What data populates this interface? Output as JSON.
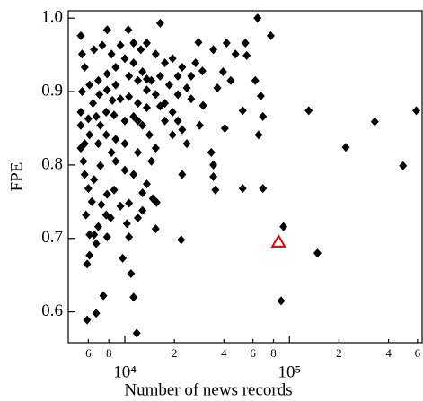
{
  "chart_data": {
    "type": "scatter",
    "xlabel": "Number of news records",
    "ylabel": "FPE",
    "xscale": "log",
    "xlim": [
      4530,
      640000
    ],
    "ylim": [
      0.558,
      1.01
    ],
    "xticks": [
      {
        "value": 6000,
        "label": "6"
      },
      {
        "value": 8000,
        "label": "8"
      },
      {
        "value": 10000,
        "label": "10⁴"
      },
      {
        "value": 20000,
        "label": "2"
      },
      {
        "value": 40000,
        "label": "4"
      },
      {
        "value": 60000,
        "label": "6"
      },
      {
        "value": 80000,
        "label": "8"
      },
      {
        "value": 100000,
        "label": "10⁵"
      },
      {
        "value": 200000,
        "label": "2"
      },
      {
        "value": 400000,
        "label": "4"
      },
      {
        "value": 600000,
        "label": "6"
      }
    ],
    "yticks": [
      0.6,
      0.7,
      0.8,
      0.9,
      {
        "value": 1,
        "label": "1.0"
      }
    ],
    "series": [
      {
        "color": "#000000",
        "marker": "diamond",
        "x": [
          64000,
          77000,
          54000,
          16400,
          7810,
          10500,
          41500,
          55000,
          62000,
          69000,
          52000,
          67000,
          65000,
          131000,
          330000,
          590000,
          220000,
          490000,
          52000,
          69000,
          92000,
          148000,
          89000,
          40500,
          33500,
          34500,
          34500,
          35500,
          22300,
          22000,
          29900,
          29600,
          34500,
          28000,
          44000,
          39500,
          5900,
          6700,
          7400,
          11300,
          11800,
          10900,
          9700,
          5900,
          6100,
          6100,
          6500,
          6900,
          7700,
          8200,
          5800,
          6300,
          7200,
          7800,
          9400,
          10600,
          12000,
          14800,
          15600,
          15400,
          12800,
          13600,
          11300,
          10000,
          8800,
          6500,
          6000,
          7100,
          8300,
          5600,
          5400,
          5700,
          6100,
          6900,
          7700,
          8800,
          10000,
          12000,
          14500,
          15400,
          14100,
          12800,
          11300,
          10000,
          8600,
          7700,
          6700,
          6000,
          5400,
          5400,
          6400,
          7000,
          7800,
          8400,
          9400,
          10600,
          12000,
          13600,
          16400,
          19500,
          21000,
          22300,
          19500,
          23800,
          21000,
          23800,
          18600,
          16400,
          14500,
          12800,
          11300,
          10000,
          8800,
          7800,
          6900,
          6100,
          5500,
          5700,
          5500,
          5400,
          6500,
          7300,
          8300,
          9400,
          11300,
          12500,
          13600,
          15400,
          17500,
          19500,
          22300,
          25300,
          26900,
          25300,
          28500,
          17500,
          10600,
          12000,
          13600,
          15400,
          8800,
          7100,
          5700,
          7800,
          6700,
          10300,
          8600,
          10600,
          12800,
          13600,
          17500,
          36500,
          47000,
          21000,
          12000
        ],
        "values": [
          1.0,
          0.976,
          0.966,
          0.993,
          0.984,
          0.984,
          0.966,
          0.949,
          0.915,
          0.866,
          0.874,
          0.894,
          0.841,
          0.874,
          0.859,
          0.874,
          0.824,
          0.799,
          0.768,
          0.768,
          0.716,
          0.68,
          0.615,
          0.85,
          0.817,
          0.8,
          0.784,
          0.766,
          0.787,
          0.698,
          0.881,
          0.928,
          0.957,
          0.967,
          0.915,
          0.927,
          0.589,
          0.598,
          0.622,
          0.62,
          0.571,
          0.652,
          0.673,
          0.665,
          0.677,
          0.705,
          0.705,
          0.716,
          0.732,
          0.728,
          0.732,
          0.75,
          0.746,
          0.76,
          0.744,
          0.748,
          0.728,
          0.754,
          0.749,
          0.713,
          0.762,
          0.774,
          0.787,
          0.793,
          0.805,
          0.78,
          0.768,
          0.799,
          0.817,
          0.805,
          0.823,
          0.829,
          0.841,
          0.829,
          0.841,
          0.835,
          0.829,
          0.817,
          0.805,
          0.823,
          0.841,
          0.854,
          0.866,
          0.86,
          0.868,
          0.872,
          0.866,
          0.863,
          0.872,
          0.854,
          0.884,
          0.896,
          0.902,
          0.888,
          0.89,
          0.893,
          0.884,
          0.878,
          0.88,
          0.872,
          0.86,
          0.848,
          0.841,
          0.829,
          0.896,
          0.905,
          0.909,
          0.921,
          0.915,
          0.927,
          0.939,
          0.945,
          0.933,
          0.924,
          0.915,
          0.909,
          0.9,
          0.933,
          0.951,
          0.976,
          0.957,
          0.963,
          0.951,
          0.963,
          0.966,
          0.957,
          0.966,
          0.951,
          0.939,
          0.945,
          0.933,
          0.921,
          0.939,
          0.89,
          0.854,
          0.86,
          0.921,
          0.915,
          0.902,
          0.896,
          0.909,
          0.854,
          0.787,
          0.702,
          0.693,
          0.72,
          0.766,
          0.702,
          0.738,
          0.917,
          0.884,
          0.905,
          0.951,
          0.921,
          0.86
        ]
      },
      {
        "color": "#e00000",
        "marker": "triangle",
        "x": [
          86000
        ],
        "values": [
          0.695
        ]
      }
    ]
  }
}
